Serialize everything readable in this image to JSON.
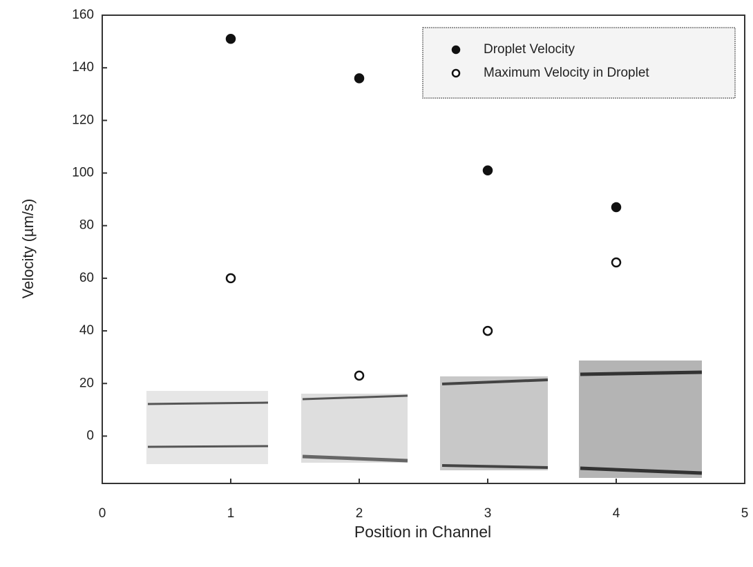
{
  "chart_data": {
    "type": "scatter",
    "x_label": "Position in Channel",
    "y_label": "Velocity (µm/s)",
    "xlim": [
      0,
      5
    ],
    "xticks": [
      0,
      1,
      2,
      3,
      4,
      5
    ],
    "ylim": [
      -18,
      160
    ],
    "yticks": [
      0,
      20,
      40,
      60,
      80,
      100,
      120,
      140,
      160
    ],
    "legend": "upper right",
    "series": [
      {
        "name": "Droplet Velocity",
        "color": "#111111",
        "marker": "filled",
        "x": [
          1,
          2,
          3,
          4
        ],
        "values": [
          151,
          136,
          101,
          87
        ]
      },
      {
        "name": "Maximum Velocity in Droplet",
        "color": "#111111",
        "marker": "open",
        "x": [
          1,
          2,
          3,
          4
        ],
        "values": [
          60,
          23,
          40,
          66
        ]
      }
    ]
  }
}
